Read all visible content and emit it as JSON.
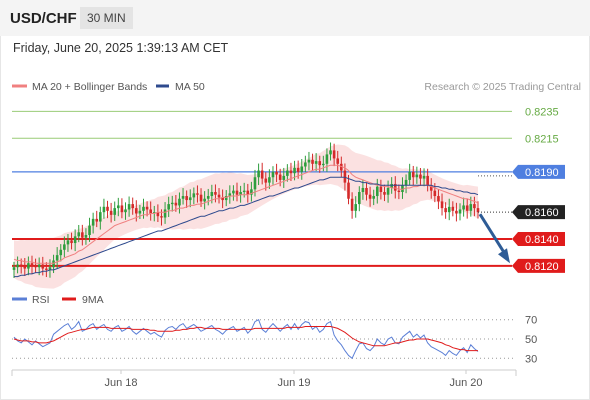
{
  "header": {
    "pair": "USD/CHF",
    "timeframe": "30 MIN",
    "timestamp": "Friday, June 20, 2025 1:39:13 AM CET"
  },
  "colors": {
    "ma20": "#f08080",
    "bollinger_fill": "#fadcdc",
    "ma50": "#2e4a8e",
    "candle_up": "#2e9e3e",
    "candle_down": "#d42a2a",
    "green_line": "#99cc77",
    "green_text": "#66aa44",
    "blue_line": "#4f7fe0",
    "red_line": "#e01b1b",
    "rsi": "#5b7fd6",
    "rsi_ma": "#e01b1b",
    "arrow": "#2e5c96"
  },
  "chart_data": {
    "type": "candlestick",
    "title": "USD/CHF",
    "timeframe": "30 MIN",
    "credit": "Research © 2025 Trading Central",
    "legend": [
      {
        "name": "MA 20 + Bollinger Bands",
        "color": "#f08080"
      },
      {
        "name": "MA 50",
        "color": "#2e4a8e"
      }
    ],
    "xlabels": [
      "Jun 18",
      "Jun 19",
      "Jun 20"
    ],
    "ylim": [
      0.8108,
      0.8245
    ],
    "current_price": "0.8160",
    "levels": [
      {
        "value": 0.8235,
        "label": "0.8235",
        "kind": "resistance"
      },
      {
        "value": 0.8215,
        "label": "0.8215",
        "kind": "resistance"
      },
      {
        "value": 0.819,
        "label": "0.8190",
        "kind": "pivot"
      },
      {
        "value": 0.814,
        "label": "0.8140",
        "kind": "support"
      },
      {
        "value": 0.812,
        "label": "0.8120",
        "kind": "support"
      }
    ],
    "close": [
      0.8119,
      0.8121,
      0.812,
      0.8118,
      0.8122,
      0.812,
      0.8119,
      0.8121,
      0.8118,
      0.8117,
      0.8119,
      0.8124,
      0.8128,
      0.8132,
      0.8136,
      0.8139,
      0.8137,
      0.8142,
      0.8145,
      0.8141,
      0.8143,
      0.815,
      0.8155,
      0.8153,
      0.816,
      0.8164,
      0.8161,
      0.8158,
      0.8163,
      0.8165,
      0.816,
      0.8162,
      0.8166,
      0.8163,
      0.8159,
      0.8161,
      0.8164,
      0.8162,
      0.8159,
      0.816,
      0.8157,
      0.8156,
      0.8162,
      0.8166,
      0.8167,
      0.8165,
      0.817,
      0.8172,
      0.8169,
      0.8171,
      0.8174,
      0.8173,
      0.8168,
      0.817,
      0.8172,
      0.8175,
      0.8173,
      0.8171,
      0.8169,
      0.8172,
      0.8174,
      0.8176,
      0.8173,
      0.8175,
      0.8176,
      0.8173,
      0.8177,
      0.8186,
      0.8191,
      0.8185,
      0.8182,
      0.8186,
      0.819,
      0.8188,
      0.8184,
      0.8187,
      0.8191,
      0.8189,
      0.8193,
      0.819,
      0.8194,
      0.8197,
      0.8199,
      0.8196,
      0.8198,
      0.8195,
      0.8196,
      0.8203,
      0.8206,
      0.82,
      0.8196,
      0.8191,
      0.8182,
      0.817,
      0.8161,
      0.8166,
      0.8175,
      0.8178,
      0.8173,
      0.817,
      0.8172,
      0.8179,
      0.8175,
      0.8173,
      0.8178,
      0.8181,
      0.8176,
      0.8175,
      0.818,
      0.8184,
      0.819,
      0.8186,
      0.8188,
      0.8185,
      0.8187,
      0.818,
      0.8176,
      0.8172,
      0.8168,
      0.8163,
      0.816,
      0.8164,
      0.8161,
      0.8159,
      0.8162,
      0.8165,
      0.8161,
      0.8166,
      0.8163,
      0.816
    ],
    "ma20": [
      0.8125,
      0.8124,
      0.8124,
      0.8123,
      0.8123,
      0.8123,
      0.8122,
      0.8122,
      0.8122,
      0.8122,
      0.8122,
      0.8122,
      0.8123,
      0.8124,
      0.8126,
      0.8127,
      0.8128,
      0.8129,
      0.8131,
      0.8132,
      0.8134,
      0.8136,
      0.8138,
      0.814,
      0.8142,
      0.8144,
      0.8146,
      0.8148,
      0.815,
      0.8151,
      0.8152,
      0.8153,
      0.8154,
      0.8155,
      0.8156,
      0.8157,
      0.8158,
      0.8158,
      0.8159,
      0.8159,
      0.816,
      0.816,
      0.816,
      0.8161,
      0.8161,
      0.8162,
      0.8163,
      0.8163,
      0.8164,
      0.8165,
      0.8165,
      0.8166,
      0.8166,
      0.8167,
      0.8168,
      0.8169,
      0.817,
      0.817,
      0.8171,
      0.8171,
      0.8172,
      0.8172,
      0.8172,
      0.8173,
      0.8173,
      0.8173,
      0.8174,
      0.8175,
      0.8176,
      0.8177,
      0.8178,
      0.8179,
      0.818,
      0.8181,
      0.8182,
      0.8183,
      0.8184,
      0.8185,
      0.8186,
      0.8187,
      0.8188,
      0.8189,
      0.819,
      0.8191,
      0.8192,
      0.8192,
      0.8193,
      0.8194,
      0.8195,
      0.8195,
      0.8195,
      0.8194,
      0.8193,
      0.8191,
      0.8188,
      0.8186,
      0.8185,
      0.8184,
      0.8183,
      0.8182,
      0.8181,
      0.818,
      0.818,
      0.8179,
      0.8179,
      0.8178,
      0.8178,
      0.8177,
      0.8177,
      0.8178,
      0.8178,
      0.8179,
      0.8179,
      0.818,
      0.818,
      0.818,
      0.8179,
      0.8178,
      0.8177,
      0.8176,
      0.8175,
      0.8174,
      0.8173,
      0.8172,
      0.8171,
      0.817,
      0.817,
      0.8169,
      0.8168,
      0.8167
    ],
    "ma50": [
      0.8112,
      0.8112,
      0.8113,
      0.8113,
      0.8114,
      0.8114,
      0.8115,
      0.8115,
      0.8116,
      0.8116,
      0.8117,
      0.8117,
      0.8118,
      0.8119,
      0.812,
      0.8121,
      0.8122,
      0.8123,
      0.8124,
      0.8125,
      0.8126,
      0.8127,
      0.8128,
      0.8129,
      0.813,
      0.8131,
      0.8132,
      0.8133,
      0.8134,
      0.8135,
      0.8136,
      0.8137,
      0.8138,
      0.8139,
      0.814,
      0.8141,
      0.8142,
      0.8143,
      0.8144,
      0.8145,
      0.8146,
      0.8146,
      0.8147,
      0.8148,
      0.8149,
      0.815,
      0.8151,
      0.8152,
      0.8153,
      0.8154,
      0.8155,
      0.8156,
      0.8157,
      0.8157,
      0.8158,
      0.8159,
      0.816,
      0.8161,
      0.8161,
      0.8162,
      0.8163,
      0.8163,
      0.8164,
      0.8165,
      0.8165,
      0.8166,
      0.8167,
      0.8168,
      0.8169,
      0.817,
      0.8171,
      0.8172,
      0.8172,
      0.8173,
      0.8174,
      0.8175,
      0.8176,
      0.8177,
      0.8178,
      0.8178,
      0.8179,
      0.818,
      0.8181,
      0.8182,
      0.8183,
      0.8184,
      0.8184,
      0.8185,
      0.8186,
      0.8186,
      0.8186,
      0.8186,
      0.8186,
      0.8185,
      0.8184,
      0.8183,
      0.8183,
      0.8182,
      0.8182,
      0.8181,
      0.8181,
      0.8181,
      0.818,
      0.818,
      0.818,
      0.818,
      0.818,
      0.818,
      0.818,
      0.818,
      0.818,
      0.818,
      0.818,
      0.818,
      0.818,
      0.818,
      0.818,
      0.8179,
      0.8179,
      0.8178,
      0.8178,
      0.8177,
      0.8177,
      0.8176,
      0.8176,
      0.8175,
      0.8175,
      0.8174,
      0.8174,
      0.8173
    ],
    "bollinger_width": 0.0014,
    "rsi_panel": {
      "legend": [
        {
          "name": "RSI",
          "color": "#5b7fd6"
        },
        {
          "name": "9MA",
          "color": "#e01b1b"
        }
      ],
      "ylim": [
        22,
        78
      ],
      "levels": [
        70,
        50,
        30
      ],
      "level_labels": [
        "70",
        "50",
        "30"
      ],
      "rsi": [
        52,
        48,
        46,
        50,
        47,
        44,
        48,
        45,
        42,
        44,
        46,
        55,
        58,
        61,
        64,
        66,
        60,
        63,
        68,
        58,
        60,
        64,
        66,
        60,
        63,
        65,
        60,
        58,
        62,
        64,
        58,
        60,
        63,
        58,
        55,
        58,
        61,
        58,
        55,
        57,
        54,
        52,
        59,
        62,
        63,
        60,
        64,
        66,
        61,
        63,
        65,
        62,
        58,
        60,
        62,
        64,
        60,
        58,
        55,
        59,
        61,
        63,
        58,
        60,
        62,
        56,
        60,
        68,
        70,
        60,
        57,
        62,
        66,
        62,
        58,
        62,
        65,
        60,
        66,
        60,
        65,
        68,
        67,
        60,
        63,
        57,
        60,
        66,
        68,
        54,
        48,
        44,
        38,
        33,
        30,
        38,
        45,
        46,
        40,
        38,
        42,
        50,
        46,
        44,
        50,
        52,
        46,
        45,
        52,
        55,
        58,
        52,
        55,
        51,
        54,
        46,
        42,
        40,
        38,
        36,
        33,
        38,
        35,
        33,
        38,
        41,
        36,
        44,
        40,
        37
      ],
      "ma9": [
        50,
        49,
        48,
        48,
        48,
        47,
        47,
        46,
        46,
        46,
        47,
        48,
        50,
        52,
        54,
        56,
        57,
        58,
        59,
        60,
        60,
        61,
        62,
        62,
        62,
        62,
        62,
        61,
        61,
        61,
        61,
        61,
        61,
        60,
        60,
        60,
        60,
        60,
        59,
        59,
        58,
        58,
        58,
        58,
        58,
        59,
        59,
        60,
        60,
        61,
        61,
        62,
        62,
        61,
        61,
        61,
        61,
        61,
        60,
        60,
        60,
        60,
        60,
        60,
        60,
        60,
        60,
        61,
        61,
        61,
        61,
        61,
        61,
        61,
        61,
        61,
        62,
        62,
        62,
        62,
        62,
        63,
        63,
        63,
        63,
        63,
        63,
        63,
        63,
        62,
        61,
        59,
        57,
        54,
        51,
        49,
        47,
        46,
        45,
        44,
        43,
        43,
        43,
        43,
        44,
        45,
        46,
        46,
        47,
        48,
        49,
        49,
        50,
        50,
        50,
        50,
        49,
        48,
        47,
        46,
        44,
        43,
        41,
        40,
        39,
        39,
        38,
        38,
        38,
        38
      ]
    }
  }
}
